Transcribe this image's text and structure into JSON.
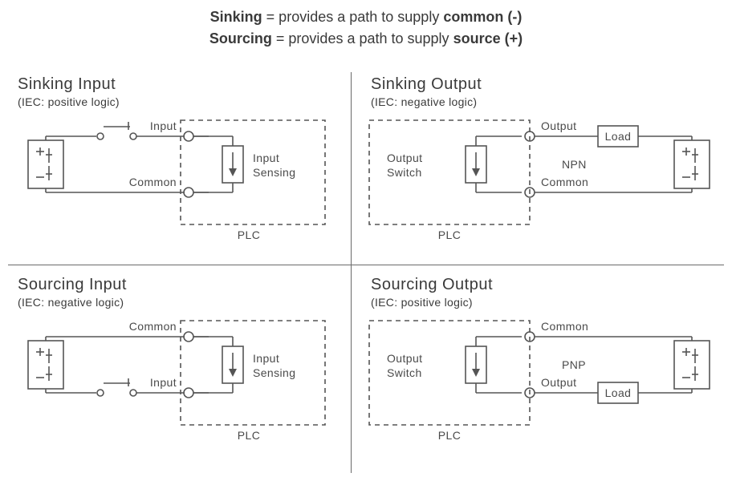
{
  "header": {
    "line1_bold1": "Sinking",
    "line1_rest": " = provides a path to supply ",
    "line1_bold2": "common (-)",
    "line2_bold1": "Sourcing",
    "line2_rest": " = provides a path to supply ",
    "line2_bold2": "source (+)"
  },
  "quads": {
    "tl": {
      "title": "Sinking Input",
      "subtitle": "(IEC: positive logic)",
      "topLabel": "Input",
      "bottomLabel": "Common",
      "blockLabel1": "Input",
      "blockLabel2": "Sensing",
      "plc": "PLC",
      "switchOnTop": true,
      "batteryLeft": true,
      "loadTop": false,
      "loadBottom": false,
      "centerText": ""
    },
    "tr": {
      "title": "Sinking Output",
      "subtitle": "(IEC: negative logic)",
      "topLabel": "Output",
      "bottomLabel": "Common",
      "blockLabel1": "Output",
      "blockLabel2": "Switch",
      "plc": "PLC",
      "switchOnTop": false,
      "batteryLeft": false,
      "loadTop": true,
      "loadBottom": false,
      "centerText": "NPN"
    },
    "bl": {
      "title": "Sourcing Input",
      "subtitle": "(IEC: negative logic)",
      "topLabel": "Common",
      "bottomLabel": "Input",
      "blockLabel1": "Input",
      "blockLabel2": "Sensing",
      "plc": "PLC",
      "switchOnTop": false,
      "switchOnBottom": true,
      "batteryLeft": true,
      "loadTop": false,
      "loadBottom": false,
      "centerText": ""
    },
    "br": {
      "title": "Sourcing Output",
      "subtitle": "(IEC: positive logic)",
      "topLabel": "Common",
      "bottomLabel": "Output",
      "blockLabel1": "Output",
      "blockLabel2": "Switch",
      "plc": "PLC",
      "switchOnTop": false,
      "batteryLeft": false,
      "loadTop": false,
      "loadBottom": true,
      "centerText": "PNP"
    }
  },
  "style": {
    "stroke": "#555555",
    "strokeWidth": 1.6,
    "dash": "6,5",
    "textColor": "#4a4a4a",
    "fontSize": 14,
    "loadLabel": "Load"
  }
}
